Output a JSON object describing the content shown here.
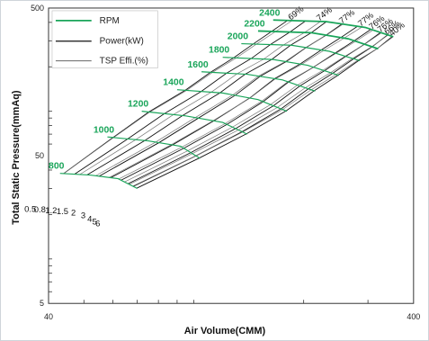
{
  "chart_data": {
    "type": "line",
    "xlabel": "Air Volume(CMM)",
    "ylabel": "Total Static Pressure(mmAq)",
    "x_scale": "log",
    "y_scale": "log",
    "xlim": [
      40,
      400
    ],
    "ylim": [
      5,
      500
    ],
    "x_ticks": [
      "40",
      "400"
    ],
    "y_ticks": [
      "500",
      "50",
      "5"
    ],
    "grid": false,
    "legend_position": "top-left",
    "legend": [
      {
        "label": "RPM",
        "color": "#1aa55a"
      },
      {
        "label": "Power(kW)",
        "color": "#111111"
      },
      {
        "label": "TSP Effi.(%)",
        "color": "#666666"
      }
    ],
    "series": [
      {
        "name": "800",
        "x": [
          43,
          52,
          62,
          70
        ],
        "y": [
          38,
          37,
          35,
          30
        ]
      },
      {
        "name": "1000",
        "x": [
          58,
          75,
          92,
          104
        ],
        "y": [
          67,
          63,
          58,
          48
        ]
      },
      {
        "name": "1200",
        "x": [
          72,
          95,
          120,
          140
        ],
        "y": [
          100,
          93,
          84,
          70
        ]
      },
      {
        "name": "1400",
        "x": [
          90,
          120,
          150,
          180
        ],
        "y": [
          140,
          133,
          120,
          100
        ]
      },
      {
        "name": "1600",
        "x": [
          105,
          140,
          175,
          215
        ],
        "y": [
          185,
          178,
          163,
          137
        ]
      },
      {
        "name": "1800",
        "x": [
          120,
          165,
          205,
          250
        ],
        "y": [
          232,
          224,
          205,
          175
        ]
      },
      {
        "name": "2000",
        "x": [
          135,
          185,
          235,
          285
        ],
        "y": [
          287,
          280,
          255,
          220
        ]
      },
      {
        "name": "2200",
        "x": [
          150,
          210,
          265,
          320
        ],
        "y": [
          350,
          340,
          310,
          265
        ]
      },
      {
        "name": "2400",
        "x": [
          165,
          230,
          295,
          352
        ],
        "y": [
          415,
          405,
          370,
          320
        ]
      }
    ],
    "power_labels": [
      "0.5",
      "0.8",
      "1.2",
      "1.5",
      "2",
      "3",
      "4",
      "5",
      "6"
    ],
    "efficiency_labels": [
      "69%",
      "74%",
      "77%",
      "77%",
      "76%",
      "76%",
      "66%",
      "40%"
    ],
    "colors": {
      "rpm": "#1aa55a",
      "power": "#111111",
      "efficiency": "#666666",
      "axis": "#333333"
    }
  }
}
